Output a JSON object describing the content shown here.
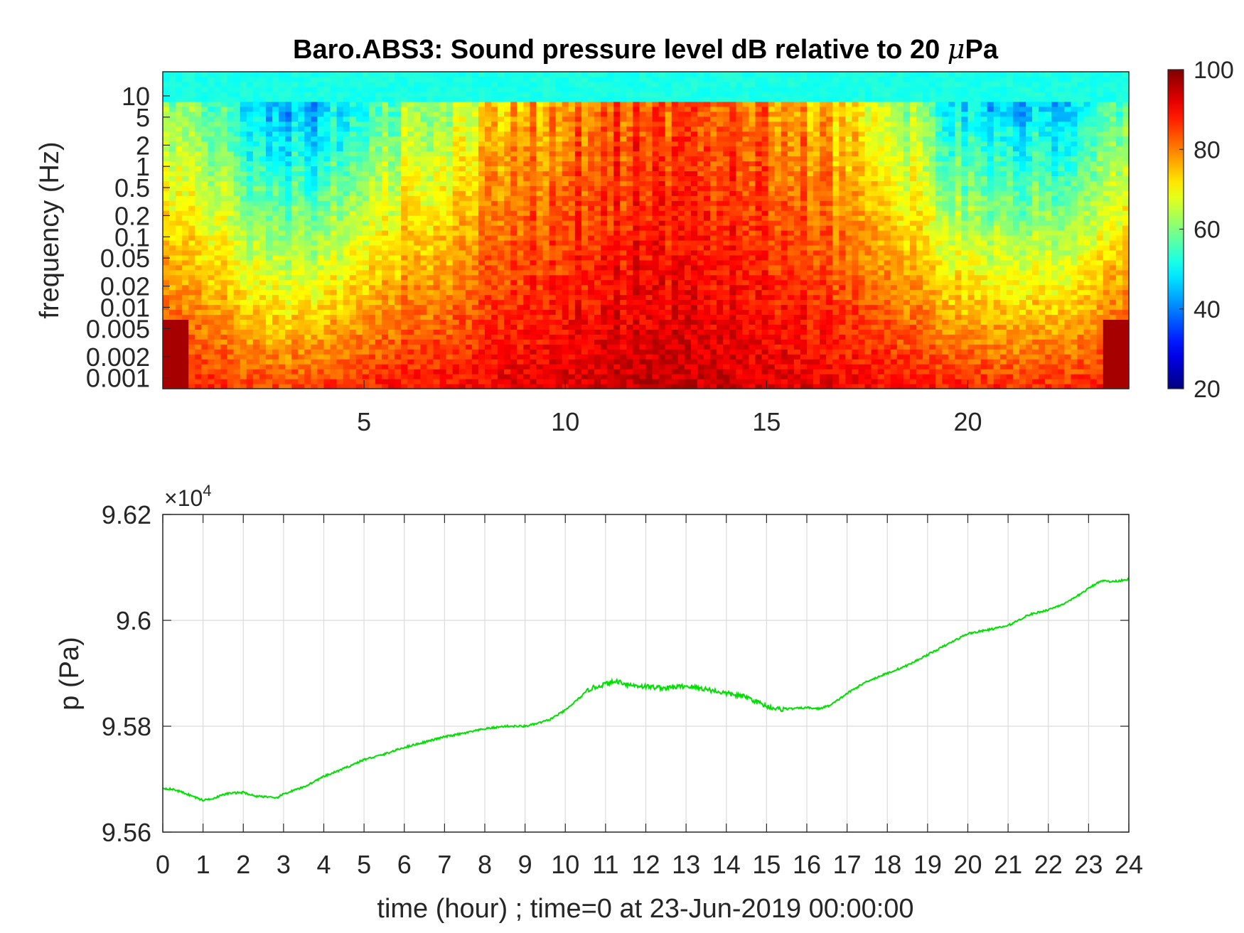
{
  "chart_data": [
    {
      "type": "heatmap",
      "title": "Baro.ABS3: Sound pressure level dB relative to 20 ",
      "title_mu": "μ",
      "title_unit": "Pa",
      "xlabel": "",
      "ylabel": "frequency (Hz)",
      "x_range": [
        0,
        24
      ],
      "x_ticks": [
        "5",
        "10",
        "15",
        "20"
      ],
      "x_tick_values": [
        5,
        10,
        15,
        20
      ],
      "y_scale": "log",
      "y_range": [
        0.0007,
        22
      ],
      "y_ticks": [
        "10",
        "5",
        "2",
        "1",
        "0.5",
        "0.2",
        "0.1",
        "0.05",
        "0.02",
        "0.01",
        "0.005",
        "0.002",
        "0.001"
      ],
      "y_tick_values": [
        10,
        5,
        2,
        1,
        0.5,
        0.2,
        0.1,
        0.05,
        0.02,
        0.01,
        0.005,
        0.002,
        0.001
      ],
      "colorbar": {
        "colormap": "jet",
        "range": [
          20,
          100
        ],
        "ticks": [
          "100",
          "80",
          "60",
          "40",
          "20"
        ],
        "tick_values": [
          100,
          80,
          60,
          40,
          20
        ]
      },
      "activity_profile": {
        "hours": [
          0,
          1,
          2,
          3,
          4,
          5,
          6,
          7,
          8,
          9,
          10,
          11,
          12,
          13,
          14,
          15,
          16,
          17,
          18,
          19,
          20,
          21,
          22,
          23,
          24
        ],
        "high_frequency_level_db": [
          62,
          58,
          48,
          44,
          44,
          54,
          60,
          62,
          70,
          76,
          80,
          82,
          84,
          84,
          82,
          80,
          78,
          72,
          66,
          56,
          46,
          44,
          46,
          52,
          60
        ],
        "low_frequency_level_db": [
          90,
          88,
          86,
          85,
          86,
          88,
          89,
          90,
          91,
          92,
          93,
          94,
          95,
          95,
          94,
          93,
          92,
          91,
          90,
          89,
          88,
          87,
          87,
          88,
          92
        ]
      }
    },
    {
      "type": "line",
      "title": "",
      "xlabel": "time (hour) ; time=0 at 23-Jun-2019 00:00:00",
      "ylabel": "p (Pa)",
      "exponent_label": "×10",
      "exponent_power": "4",
      "x_range": [
        0,
        24
      ],
      "ylim": [
        95600,
        96200
      ],
      "x_ticks": [
        "0",
        "1",
        "2",
        "3",
        "4",
        "5",
        "6",
        "7",
        "8",
        "9",
        "10",
        "11",
        "12",
        "13",
        "14",
        "15",
        "16",
        "17",
        "18",
        "19",
        "20",
        "21",
        "22",
        "23",
        "24"
      ],
      "x_tick_values": [
        0,
        1,
        2,
        3,
        4,
        5,
        6,
        7,
        8,
        9,
        10,
        11,
        12,
        13,
        14,
        15,
        16,
        17,
        18,
        19,
        20,
        21,
        22,
        23,
        24
      ],
      "y_ticks": [
        "9.62",
        "9.6",
        "9.58",
        "9.56"
      ],
      "y_tick_values": [
        96200,
        96000,
        95800,
        95600
      ],
      "grid": true,
      "line_color": "#00e000",
      "series": [
        {
          "x": [
            0,
            0.3,
            0.6,
            1.0,
            1.3,
            1.6,
            2.0,
            2.3,
            2.6,
            2.8,
            3.0,
            3.5,
            4.0,
            4.5,
            5.0,
            5.5,
            6.0,
            6.5,
            7.0,
            7.5,
            8.0,
            8.5,
            9.0,
            9.3,
            9.6,
            10.0,
            10.3,
            10.6,
            11.0,
            11.3,
            11.6,
            12.0,
            12.5,
            13.0,
            13.5,
            14.0,
            14.5,
            15.0,
            15.3,
            15.6,
            16.0,
            16.3,
            16.6,
            17.0,
            17.5,
            18.0,
            18.5,
            19.0,
            19.5,
            20.0,
            20.5,
            21.0,
            21.5,
            22.0,
            22.5,
            23.0,
            23.3,
            23.6,
            24.0
          ],
          "y": [
            95683,
            95680,
            95672,
            95660,
            95665,
            95673,
            95675,
            95668,
            95667,
            95663,
            95672,
            95685,
            95705,
            95720,
            95737,
            95747,
            95760,
            95770,
            95780,
            95787,
            95795,
            95800,
            95800,
            95805,
            95812,
            95830,
            95850,
            95870,
            95880,
            95885,
            95878,
            95875,
            95872,
            95876,
            95870,
            95862,
            95855,
            95838,
            95832,
            95833,
            95835,
            95833,
            95840,
            95862,
            95885,
            95900,
            95915,
            95935,
            95955,
            95975,
            95982,
            95990,
            96010,
            96020,
            96035,
            96060,
            96075,
            96073,
            96078
          ]
        }
      ]
    }
  ]
}
